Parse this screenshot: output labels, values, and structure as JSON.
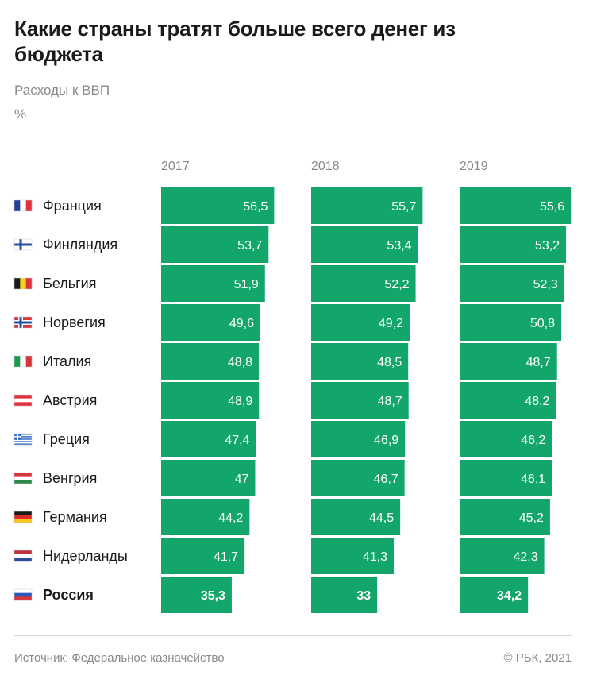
{
  "title": "Какие страны тратят больше всего денег из бюджета",
  "subtitle": "Расходы к ВВП",
  "unit": "%",
  "source": "Источник: Федеральное казначейство",
  "copyright": "© РБК, 2021",
  "colors": {
    "bar": "#13a66b",
    "text": "#1a1a1a",
    "muted": "#8a8a8a"
  },
  "chart_data": {
    "type": "bar",
    "orientation": "horizontal",
    "layout": "small-multiples",
    "categories": [
      "Франция",
      "Финляндия",
      "Бельгия",
      "Норвегия",
      "Италия",
      "Австрия",
      "Греция",
      "Венгрия",
      "Германия",
      "Нидерланды",
      "Россия"
    ],
    "highlight": "Россия",
    "flags": [
      "flag-france-icon",
      "flag-finland-icon",
      "flag-belgium-icon",
      "flag-norway-icon",
      "flag-italy-icon",
      "flag-austria-icon",
      "flag-greece-icon",
      "flag-hungary-icon",
      "flag-germany-icon",
      "flag-netherlands-icon",
      "flag-russia-icon"
    ],
    "series": [
      {
        "name": "2017",
        "values": [
          56.5,
          53.7,
          51.9,
          49.6,
          48.8,
          48.9,
          47.4,
          47,
          44.2,
          41.7,
          35.3
        ],
        "labels": [
          "56,5",
          "53,7",
          "51,9",
          "49,6",
          "48,8",
          "48,9",
          "47,4",
          "47",
          "44,2",
          "41,7",
          "35,3"
        ]
      },
      {
        "name": "2018",
        "values": [
          55.7,
          53.4,
          52.2,
          49.2,
          48.5,
          48.7,
          46.9,
          46.7,
          44.5,
          41.3,
          33
        ],
        "labels": [
          "55,7",
          "53,4",
          "52,2",
          "49,2",
          "48,5",
          "48,7",
          "46,9",
          "46,7",
          "44,5",
          "41,3",
          "33"
        ]
      },
      {
        "name": "2019",
        "values": [
          55.6,
          53.2,
          52.3,
          50.8,
          48.7,
          48.2,
          46.2,
          46.1,
          45.2,
          42.3,
          34.2
        ],
        "labels": [
          "55,6",
          "53,2",
          "52,3",
          "50,8",
          "48,7",
          "48,2",
          "46,2",
          "46,1",
          "45,2",
          "42,3",
          "34,2"
        ]
      }
    ],
    "xlim": [
      0,
      60
    ]
  }
}
